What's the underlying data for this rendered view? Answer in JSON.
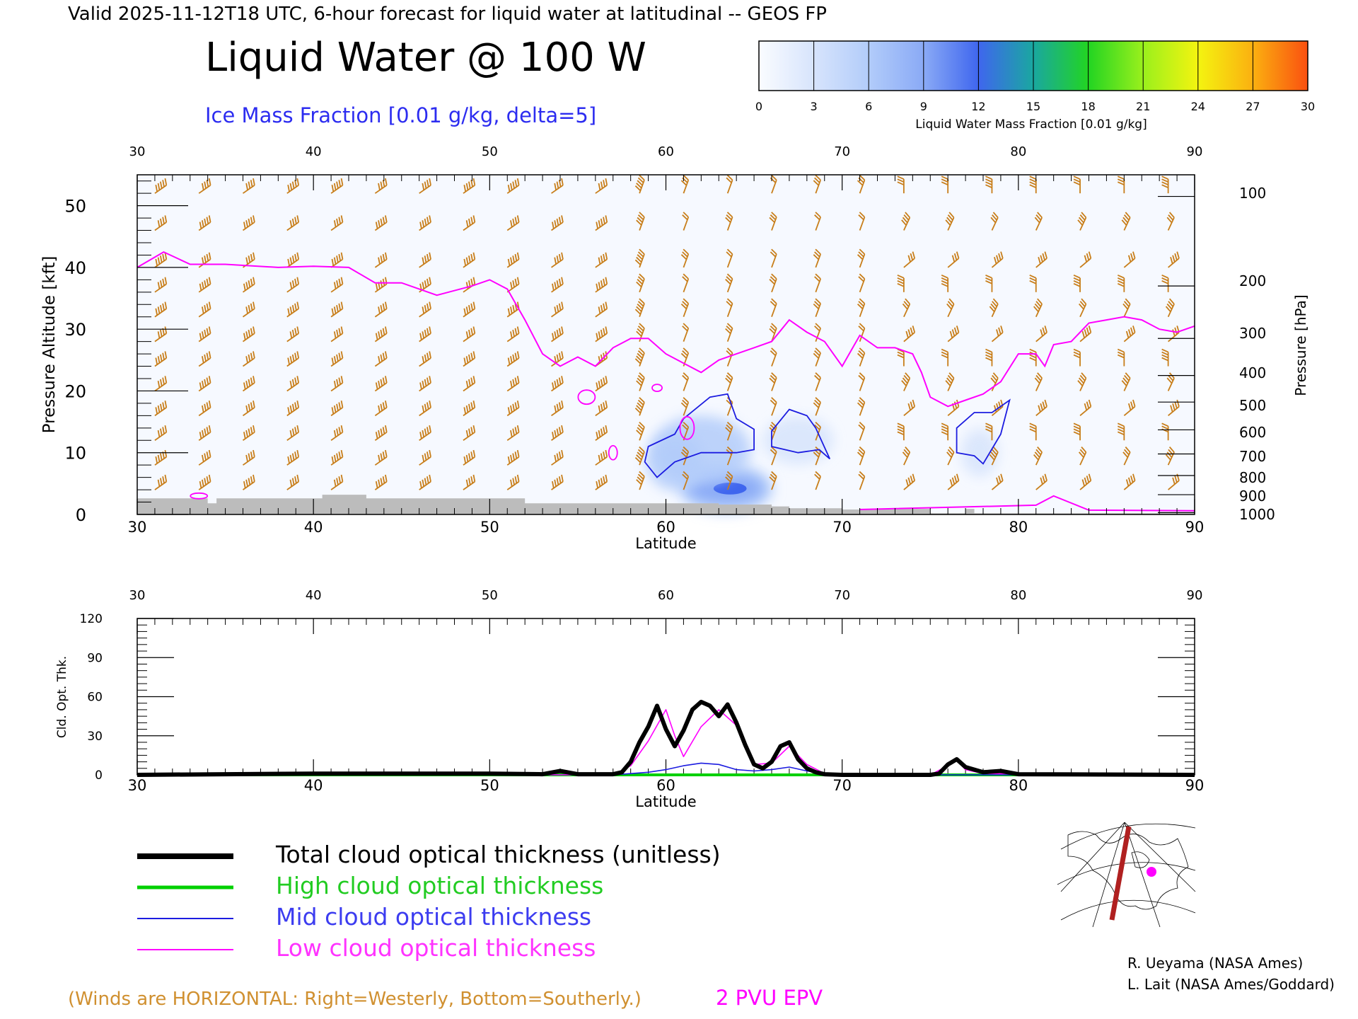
{
  "header": {
    "valid_line": "Valid 2025-11-12T18 UTC, 6-hour forecast for liquid water at latitudinal -- GEOS FP",
    "main_title": "Liquid Water @ 100 W",
    "contour_label": "Ice Mass Fraction [0.01 g/kg, delta=5]"
  },
  "colorbar": {
    "ticks": [
      "0",
      "3",
      "6",
      "9",
      "12",
      "15",
      "18",
      "21",
      "24",
      "27",
      "30"
    ],
    "label": "Liquid Water Mass Fraction [0.01 g/kg]",
    "colors": [
      "#fafcff",
      "#d7e4fc",
      "#b2ccfa",
      "#8aaaf6",
      "#3f66ee",
      "#1aa7a0",
      "#22d422",
      "#9af01c",
      "#f4f410",
      "#fbb010",
      "#fa5010"
    ]
  },
  "chart_data": [
    {
      "type": "heatmap",
      "title": "Liquid Water @ 100 W",
      "xlabel": "Latitude",
      "ylabel": "Pressure Altitude [kft]",
      "ylabel_right": "Pressure [hPa]",
      "x_ticks": [
        "30",
        "40",
        "50",
        "60",
        "70",
        "80",
        "90"
      ],
      "y_ticks": [
        "0",
        "10",
        "20",
        "30",
        "40",
        "50"
      ],
      "pressure_ticks": [
        "100",
        "200",
        "300",
        "400",
        "500",
        "600",
        "700",
        "800",
        "900",
        "1000"
      ],
      "xlim": [
        30,
        90
      ],
      "ylim": [
        0,
        55
      ],
      "liquid_water_patches": [
        {
          "lat": 63.4,
          "alt": 4.2,
          "value": 13
        },
        {
          "lat": 62.0,
          "alt": 10.5,
          "value": 6
        },
        {
          "lat": 60.5,
          "alt": 8.5,
          "value": 5
        },
        {
          "lat": 67.5,
          "alt": 12.0,
          "value": 2
        },
        {
          "lat": 77.8,
          "alt": 10.0,
          "value": 2
        }
      ],
      "epv_2pvu_line": {
        "lat": [
          30,
          31.5,
          33,
          35,
          38,
          40,
          42,
          43.5,
          45,
          47,
          49,
          50,
          51,
          52,
          53,
          54,
          55,
          56,
          57,
          58,
          59,
          60,
          61,
          62,
          63,
          64,
          65,
          66,
          67,
          68,
          69,
          70,
          71,
          72,
          73,
          74,
          74.5,
          75,
          76,
          77,
          78,
          79,
          80,
          81,
          81.5,
          82,
          83,
          84,
          85,
          86,
          87,
          88,
          89,
          90
        ],
        "alt": [
          40,
          42.5,
          40.5,
          40.5,
          40,
          40.2,
          40,
          37.5,
          37.5,
          35.5,
          37,
          38,
          36.5,
          31.5,
          26,
          24,
          25.5,
          24,
          27,
          28.5,
          28.5,
          26,
          24.5,
          23,
          25,
          26,
          27,
          28,
          31.5,
          29.5,
          28,
          24,
          29,
          27,
          27,
          26,
          23,
          19,
          17.5,
          18.5,
          19.5,
          21.5,
          26,
          26,
          24,
          27.5,
          28,
          31,
          31.5,
          32,
          31.5,
          30,
          29.5,
          30.5
        ]
      },
      "ice_contours_blue": [
        {
          "lat": [
            59,
            60.5,
            61,
            62.5,
            63.5,
            64,
            65,
            65,
            64,
            62,
            60.5,
            59.5,
            58.8,
            59
          ],
          "alt": [
            11,
            13,
            15.5,
            19,
            19.5,
            15.5,
            13.8,
            10.5,
            10,
            10,
            8.5,
            6,
            8.5,
            11
          ]
        },
        {
          "lat": [
            66,
            67,
            68,
            68.5,
            69.3,
            68.7,
            67.5,
            66,
            66
          ],
          "alt": [
            13.5,
            17,
            16,
            14,
            9,
            10.5,
            10,
            11,
            13.5
          ]
        },
        {
          "lat": [
            76.5,
            77.5,
            78.5,
            79.5,
            79,
            78,
            77.5,
            76.5,
            76.5
          ],
          "alt": [
            14,
            16.5,
            16.5,
            18.5,
            13,
            8.2,
            9.5,
            10,
            14
          ]
        }
      ],
      "terrain_alt_kft": [
        [
          30,
          2.6
        ],
        [
          34,
          1.8
        ],
        [
          34.5,
          2.6
        ],
        [
          40,
          2.6
        ],
        [
          40.5,
          3.2
        ],
        [
          42,
          3.2
        ],
        [
          43,
          2.6
        ],
        [
          51.5,
          2.6
        ],
        [
          52,
          1.8
        ],
        [
          60,
          1.8
        ],
        [
          63,
          1.6
        ],
        [
          66,
          1.3
        ],
        [
          67,
          1.0
        ],
        [
          70,
          0.8
        ],
        [
          72.5,
          0.8
        ],
        [
          73,
          0.9
        ],
        [
          74.5,
          0.9
        ],
        [
          75,
          0.2
        ],
        [
          77,
          0.9
        ],
        [
          77.5,
          0.2
        ],
        [
          90,
          0.2
        ]
      ]
    },
    {
      "type": "line",
      "xlabel": "Latitude",
      "ylabel": "Cld. Opt. Thk.",
      "x_ticks": [
        "30",
        "40",
        "50",
        "60",
        "70",
        "80",
        "90"
      ],
      "y_ticks": [
        "0",
        "30",
        "60",
        "90",
        "120"
      ],
      "xlim": [
        30,
        90
      ],
      "ylim": [
        0,
        120
      ],
      "series": [
        {
          "name": "Total cloud optical thickness (unitless)",
          "color": "#000000",
          "x": [
            30,
            40,
            50,
            53,
            54,
            55,
            56,
            57,
            57.5,
            58,
            58.5,
            59,
            59.5,
            60,
            60.5,
            61,
            61.5,
            62,
            62.5,
            63,
            63.5,
            64,
            64.5,
            65,
            65.5,
            66,
            66.5,
            67,
            67.5,
            68,
            68.5,
            69,
            70,
            75,
            75.5,
            76,
            76.5,
            77,
            78,
            79,
            80,
            90
          ],
          "y": [
            0,
            1,
            1,
            0.5,
            3,
            0.5,
            0.5,
            0.5,
            2,
            10,
            25,
            37,
            53,
            35,
            22,
            34,
            50,
            56,
            53,
            45,
            54,
            40,
            23,
            8,
            5,
            10,
            22,
            25,
            12,
            5,
            2,
            0.5,
            0,
            0,
            1,
            8,
            12,
            6,
            2,
            3,
            0.5,
            0
          ]
        },
        {
          "name": "High cloud optical thickness",
          "color": "#00d000",
          "x": [
            30,
            90
          ],
          "y": [
            0,
            0
          ]
        },
        {
          "name": "Mid cloud optical thickness",
          "color": "#1c1ce0",
          "x": [
            30,
            57,
            58,
            59,
            60,
            61,
            62,
            63,
            64,
            65,
            66,
            67,
            68,
            69,
            70,
            90
          ],
          "y": [
            0,
            0,
            1,
            2,
            4,
            7,
            9,
            8,
            4,
            3,
            4,
            6,
            3,
            1,
            0,
            0
          ]
        },
        {
          "name": "Low cloud optical thickness",
          "color": "#ff00ff",
          "x": [
            30,
            57,
            58,
            59,
            60,
            60.5,
            61,
            62,
            63,
            64,
            65,
            66,
            67,
            68,
            69,
            75,
            76,
            76.5,
            77,
            78,
            90
          ],
          "y": [
            0,
            0,
            7,
            26,
            50,
            30,
            14,
            37,
            50,
            38,
            8,
            9,
            22,
            8,
            1,
            0,
            7,
            11,
            4,
            1,
            0
          ]
        }
      ]
    }
  ],
  "legend": {
    "items": [
      {
        "label": "Total cloud optical thickness (unitless)",
        "color": "#000000"
      },
      {
        "label": "High cloud optical thickness",
        "color": "#00d000"
      },
      {
        "label": "Mid cloud optical thickness",
        "color": "#1c1ce0"
      },
      {
        "label": "Low cloud optical thickness",
        "color": "#ff00ff"
      }
    ]
  },
  "footer": {
    "winds_note": "(Winds are HORIZONTAL: Right=Westerly, Bottom=Southerly.)",
    "epv_label": "2 PVU EPV",
    "credit_1": "R. Ueyama (NASA Ames)",
    "credit_2": "L. Lait (NASA Ames/Goddard)"
  },
  "colors": {
    "wind": "#c87e1a",
    "epv": "#ff00ff",
    "terrain": "#bcbcbc",
    "contour_blue": "#1c1ce0",
    "inset_track": "#b02020"
  }
}
